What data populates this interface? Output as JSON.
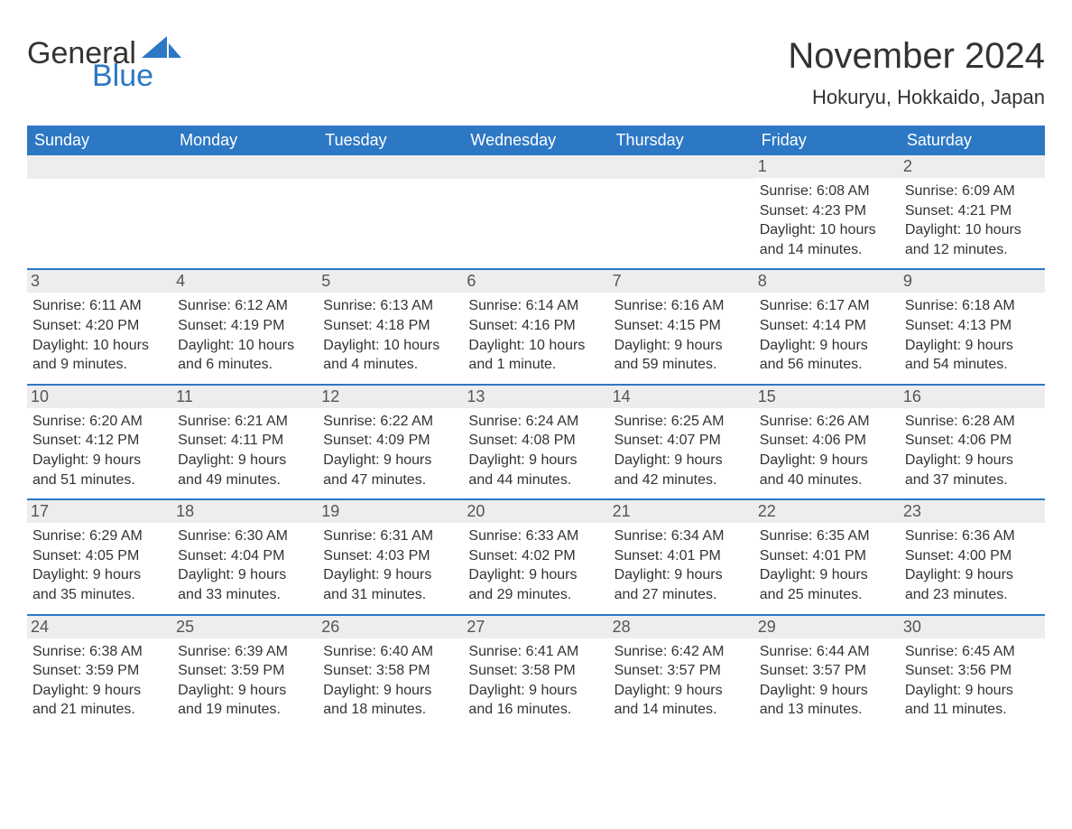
{
  "logo": {
    "text_general": "General",
    "text_blue": "Blue"
  },
  "title": "November 2024",
  "location": "Hokuryu, Hokkaido, Japan",
  "colors": {
    "header_bg": "#2d78c4",
    "header_text": "#ffffff",
    "daynum_bg": "#ededed",
    "border": "#2d78c4",
    "body_text": "#333333",
    "logo_blue": "#2d78c4"
  },
  "day_headers": [
    "Sunday",
    "Monday",
    "Tuesday",
    "Wednesday",
    "Thursday",
    "Friday",
    "Saturday"
  ],
  "weeks": [
    [
      {
        "day": "",
        "sunrise": "",
        "sunset": "",
        "daylight": ""
      },
      {
        "day": "",
        "sunrise": "",
        "sunset": "",
        "daylight": ""
      },
      {
        "day": "",
        "sunrise": "",
        "sunset": "",
        "daylight": ""
      },
      {
        "day": "",
        "sunrise": "",
        "sunset": "",
        "daylight": ""
      },
      {
        "day": "",
        "sunrise": "",
        "sunset": "",
        "daylight": ""
      },
      {
        "day": "1",
        "sunrise": "Sunrise: 6:08 AM",
        "sunset": "Sunset: 4:23 PM",
        "daylight": "Daylight: 10 hours and 14 minutes."
      },
      {
        "day": "2",
        "sunrise": "Sunrise: 6:09 AM",
        "sunset": "Sunset: 4:21 PM",
        "daylight": "Daylight: 10 hours and 12 minutes."
      }
    ],
    [
      {
        "day": "3",
        "sunrise": "Sunrise: 6:11 AM",
        "sunset": "Sunset: 4:20 PM",
        "daylight": "Daylight: 10 hours and 9 minutes."
      },
      {
        "day": "4",
        "sunrise": "Sunrise: 6:12 AM",
        "sunset": "Sunset: 4:19 PM",
        "daylight": "Daylight: 10 hours and 6 minutes."
      },
      {
        "day": "5",
        "sunrise": "Sunrise: 6:13 AM",
        "sunset": "Sunset: 4:18 PM",
        "daylight": "Daylight: 10 hours and 4 minutes."
      },
      {
        "day": "6",
        "sunrise": "Sunrise: 6:14 AM",
        "sunset": "Sunset: 4:16 PM",
        "daylight": "Daylight: 10 hours and 1 minute."
      },
      {
        "day": "7",
        "sunrise": "Sunrise: 6:16 AM",
        "sunset": "Sunset: 4:15 PM",
        "daylight": "Daylight: 9 hours and 59 minutes."
      },
      {
        "day": "8",
        "sunrise": "Sunrise: 6:17 AM",
        "sunset": "Sunset: 4:14 PM",
        "daylight": "Daylight: 9 hours and 56 minutes."
      },
      {
        "day": "9",
        "sunrise": "Sunrise: 6:18 AM",
        "sunset": "Sunset: 4:13 PM",
        "daylight": "Daylight: 9 hours and 54 minutes."
      }
    ],
    [
      {
        "day": "10",
        "sunrise": "Sunrise: 6:20 AM",
        "sunset": "Sunset: 4:12 PM",
        "daylight": "Daylight: 9 hours and 51 minutes."
      },
      {
        "day": "11",
        "sunrise": "Sunrise: 6:21 AM",
        "sunset": "Sunset: 4:11 PM",
        "daylight": "Daylight: 9 hours and 49 minutes."
      },
      {
        "day": "12",
        "sunrise": "Sunrise: 6:22 AM",
        "sunset": "Sunset: 4:09 PM",
        "daylight": "Daylight: 9 hours and 47 minutes."
      },
      {
        "day": "13",
        "sunrise": "Sunrise: 6:24 AM",
        "sunset": "Sunset: 4:08 PM",
        "daylight": "Daylight: 9 hours and 44 minutes."
      },
      {
        "day": "14",
        "sunrise": "Sunrise: 6:25 AM",
        "sunset": "Sunset: 4:07 PM",
        "daylight": "Daylight: 9 hours and 42 minutes."
      },
      {
        "day": "15",
        "sunrise": "Sunrise: 6:26 AM",
        "sunset": "Sunset: 4:06 PM",
        "daylight": "Daylight: 9 hours and 40 minutes."
      },
      {
        "day": "16",
        "sunrise": "Sunrise: 6:28 AM",
        "sunset": "Sunset: 4:06 PM",
        "daylight": "Daylight: 9 hours and 37 minutes."
      }
    ],
    [
      {
        "day": "17",
        "sunrise": "Sunrise: 6:29 AM",
        "sunset": "Sunset: 4:05 PM",
        "daylight": "Daylight: 9 hours and 35 minutes."
      },
      {
        "day": "18",
        "sunrise": "Sunrise: 6:30 AM",
        "sunset": "Sunset: 4:04 PM",
        "daylight": "Daylight: 9 hours and 33 minutes."
      },
      {
        "day": "19",
        "sunrise": "Sunrise: 6:31 AM",
        "sunset": "Sunset: 4:03 PM",
        "daylight": "Daylight: 9 hours and 31 minutes."
      },
      {
        "day": "20",
        "sunrise": "Sunrise: 6:33 AM",
        "sunset": "Sunset: 4:02 PM",
        "daylight": "Daylight: 9 hours and 29 minutes."
      },
      {
        "day": "21",
        "sunrise": "Sunrise: 6:34 AM",
        "sunset": "Sunset: 4:01 PM",
        "daylight": "Daylight: 9 hours and 27 minutes."
      },
      {
        "day": "22",
        "sunrise": "Sunrise: 6:35 AM",
        "sunset": "Sunset: 4:01 PM",
        "daylight": "Daylight: 9 hours and 25 minutes."
      },
      {
        "day": "23",
        "sunrise": "Sunrise: 6:36 AM",
        "sunset": "Sunset: 4:00 PM",
        "daylight": "Daylight: 9 hours and 23 minutes."
      }
    ],
    [
      {
        "day": "24",
        "sunrise": "Sunrise: 6:38 AM",
        "sunset": "Sunset: 3:59 PM",
        "daylight": "Daylight: 9 hours and 21 minutes."
      },
      {
        "day": "25",
        "sunrise": "Sunrise: 6:39 AM",
        "sunset": "Sunset: 3:59 PM",
        "daylight": "Daylight: 9 hours and 19 minutes."
      },
      {
        "day": "26",
        "sunrise": "Sunrise: 6:40 AM",
        "sunset": "Sunset: 3:58 PM",
        "daylight": "Daylight: 9 hours and 18 minutes."
      },
      {
        "day": "27",
        "sunrise": "Sunrise: 6:41 AM",
        "sunset": "Sunset: 3:58 PM",
        "daylight": "Daylight: 9 hours and 16 minutes."
      },
      {
        "day": "28",
        "sunrise": "Sunrise: 6:42 AM",
        "sunset": "Sunset: 3:57 PM",
        "daylight": "Daylight: 9 hours and 14 minutes."
      },
      {
        "day": "29",
        "sunrise": "Sunrise: 6:44 AM",
        "sunset": "Sunset: 3:57 PM",
        "daylight": "Daylight: 9 hours and 13 minutes."
      },
      {
        "day": "30",
        "sunrise": "Sunrise: 6:45 AM",
        "sunset": "Sunset: 3:56 PM",
        "daylight": "Daylight: 9 hours and 11 minutes."
      }
    ]
  ]
}
